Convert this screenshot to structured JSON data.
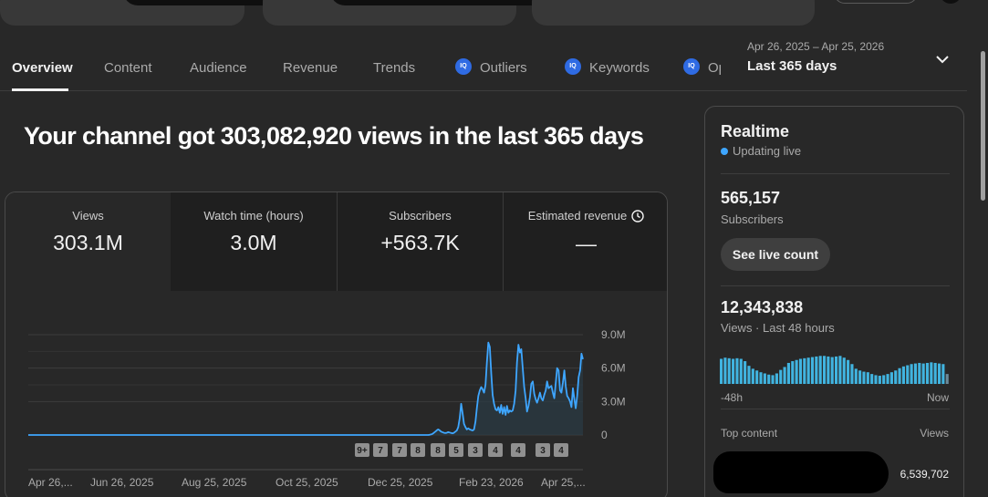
{
  "tabs": [
    {
      "label": "Overview",
      "active": true,
      "iq": false
    },
    {
      "label": "Content",
      "active": false,
      "iq": false
    },
    {
      "label": "Audience",
      "active": false,
      "iq": false
    },
    {
      "label": "Revenue",
      "active": false,
      "iq": false
    },
    {
      "label": "Trends",
      "active": false,
      "iq": false
    },
    {
      "label": "Outliers",
      "active": false,
      "iq": true
    },
    {
      "label": "Keywords",
      "active": false,
      "iq": true
    },
    {
      "label": "Op",
      "active": false,
      "iq": true
    }
  ],
  "iq_badge": "IQ",
  "date_range": {
    "dates": "Apr 26, 2025 – Apr 25, 2026",
    "label": "Last 365 days"
  },
  "headline": "Your channel got 303,082,920 views in the last 365 days",
  "metrics": [
    {
      "label": "Views",
      "value": "303.1M",
      "selected": true
    },
    {
      "label": "Watch time (hours)",
      "value": "3.0M",
      "selected": false
    },
    {
      "label": "Subscribers",
      "value": "+563.7K",
      "selected": false
    },
    {
      "label": "Estimated revenue",
      "value": "—",
      "selected": false,
      "icon": "clock-icon"
    }
  ],
  "chart_data": {
    "type": "line",
    "x_tick_labels": [
      "Apr 26,...",
      "Jun 26, 2025",
      "Aug 25, 2025",
      "Oct 25, 2025",
      "Dec 25, 2025",
      "Feb 23, 2026",
      "Apr 25,..."
    ],
    "y_tick_labels": [
      "9.0M",
      "6.0M",
      "3.0M",
      "0"
    ],
    "ylim": [
      0,
      9000000
    ],
    "series_color": "#3ea6ff",
    "values": [
      0,
      0,
      0,
      0,
      0,
      0,
      0,
      0,
      0,
      0,
      0,
      0,
      0,
      0,
      0,
      0,
      0,
      0,
      0,
      0,
      0,
      0,
      0,
      0,
      0,
      0,
      0,
      0,
      0,
      0,
      0,
      0,
      0,
      0,
      0,
      0,
      0,
      0,
      0,
      0,
      0,
      0,
      0,
      0,
      0,
      0,
      0,
      0,
      0,
      0,
      0,
      0,
      0,
      0,
      0,
      0,
      0,
      0,
      0,
      0,
      0,
      0,
      0,
      0,
      0,
      0,
      0,
      0,
      0,
      0,
      0,
      0,
      0,
      0,
      0,
      0,
      0,
      0,
      0,
      0,
      0,
      0,
      0,
      0,
      0,
      0,
      0,
      0,
      0,
      0,
      0,
      0,
      0,
      0,
      0,
      0,
      0,
      0,
      0,
      0,
      0,
      0,
      0,
      0,
      0,
      0,
      0,
      0,
      0,
      0,
      0,
      0,
      0,
      0,
      0,
      0,
      0,
      0,
      0,
      0,
      0,
      0,
      0,
      0,
      0,
      0,
      0,
      0,
      0,
      0,
      0,
      0,
      0,
      0,
      0,
      0,
      0,
      0,
      0,
      0,
      0,
      0,
      0,
      0,
      0,
      0,
      0,
      0,
      0,
      0,
      0,
      0,
      0,
      0,
      0,
      0,
      0,
      0,
      0,
      0,
      0,
      0,
      0,
      0,
      0,
      0,
      0,
      0,
      0,
      0,
      0,
      0,
      0,
      0,
      0,
      0,
      0,
      0,
      0,
      0,
      0,
      0,
      0,
      0,
      0,
      0,
      0,
      0,
      0,
      0,
      0,
      0,
      0,
      0,
      0,
      0,
      0,
      0,
      0,
      0,
      0,
      0,
      0,
      0,
      0,
      0,
      0,
      0,
      0,
      0,
      0,
      0,
      0,
      0,
      0,
      0,
      0,
      0,
      0,
      0,
      0,
      0,
      0,
      0,
      0,
      0,
      0,
      0,
      0,
      0,
      0,
      0,
      0,
      0,
      0,
      0,
      0,
      0,
      0,
      0,
      0,
      0,
      0,
      0,
      0,
      0,
      0,
      0,
      0,
      0,
      0,
      0,
      0,
      0,
      0,
      0,
      0,
      0,
      0,
      0,
      0,
      0,
      0,
      0,
      0,
      0,
      0,
      0,
      0,
      0,
      0,
      0,
      0,
      0,
      0,
      0,
      0,
      0,
      0,
      0,
      20000,
      50000,
      100000,
      200000,
      300000,
      420000,
      500000,
      420000,
      300000,
      250000,
      200000,
      180000,
      200000,
      260000,
      220000,
      180000,
      150000,
      200000,
      300000,
      400000,
      700000,
      1500000,
      2800000,
      2000000,
      1000000,
      700000,
      500000,
      600000,
      500000,
      450000,
      400000,
      500000,
      1200000,
      2400000,
      3500000,
      4000000,
      4300000,
      4100000,
      3800000,
      4500000,
      6500000,
      8300000,
      7900000,
      5500000,
      3600000,
      2800000,
      2300000,
      2200000,
      2500000,
      2000000,
      2700000,
      1900000,
      2500000,
      1800000,
      2600000,
      2000000,
      2200000,
      2100000,
      2200000,
      2800000,
      4000000,
      6500000,
      8100000,
      7400000,
      7700000,
      6000000,
      4300000,
      3300000,
      2100000,
      2600000,
      3400000,
      4600000,
      4800000,
      3700000,
      3200000,
      2900000,
      3300000,
      3800000,
      3300000,
      3100000,
      3600000,
      4000000,
      4800000,
      4200000,
      4300000,
      4400000,
      3800000,
      3300000,
      4600000,
      6000000,
      5800000,
      4000000,
      3800000,
      4700000,
      5800000,
      4400000,
      3500000,
      3300000,
      3000000,
      2500000,
      4200000,
      3200000,
      2400000,
      3500000,
      5200000,
      5800000,
      7300000,
      6800000
    ]
  },
  "chart_markers": [
    "9+",
    "7",
    "7",
    "8",
    "8",
    "5",
    "3",
    "4",
    "4",
    "3",
    "4"
  ],
  "realtime": {
    "title": "Realtime",
    "live_text": "Updating live",
    "subscribers_value": "565,157",
    "subscribers_label": "Subscribers",
    "live_count_button": "See live count",
    "views_value": "12,343,838",
    "views_label": "Views · Last 48 hours",
    "bars": [
      0.86,
      0.9,
      0.88,
      0.86,
      0.88,
      0.86,
      0.78,
      0.62,
      0.52,
      0.46,
      0.4,
      0.36,
      0.32,
      0.3,
      0.36,
      0.48,
      0.58,
      0.72,
      0.78,
      0.82,
      0.86,
      0.88,
      0.9,
      0.92,
      0.94,
      0.96,
      0.96,
      0.94,
      0.92,
      0.94,
      0.96,
      0.9,
      0.82,
      0.68,
      0.52,
      0.46,
      0.42,
      0.4,
      0.34,
      0.3,
      0.28,
      0.3,
      0.34,
      0.4,
      0.46,
      0.54,
      0.6,
      0.64,
      0.68,
      0.7,
      0.72,
      0.7,
      0.72,
      0.74,
      0.72,
      0.7,
      0.68,
      0.34
    ],
    "bars_start_label": "-48h",
    "bars_end_label": "Now",
    "top_content_label": "Top content",
    "top_content_views_label": "Views",
    "top_content_value": "6,539,702"
  },
  "colors": {
    "accent": "#3ea6ff",
    "background": "#282828",
    "iq_badge": "#2f6be3"
  }
}
